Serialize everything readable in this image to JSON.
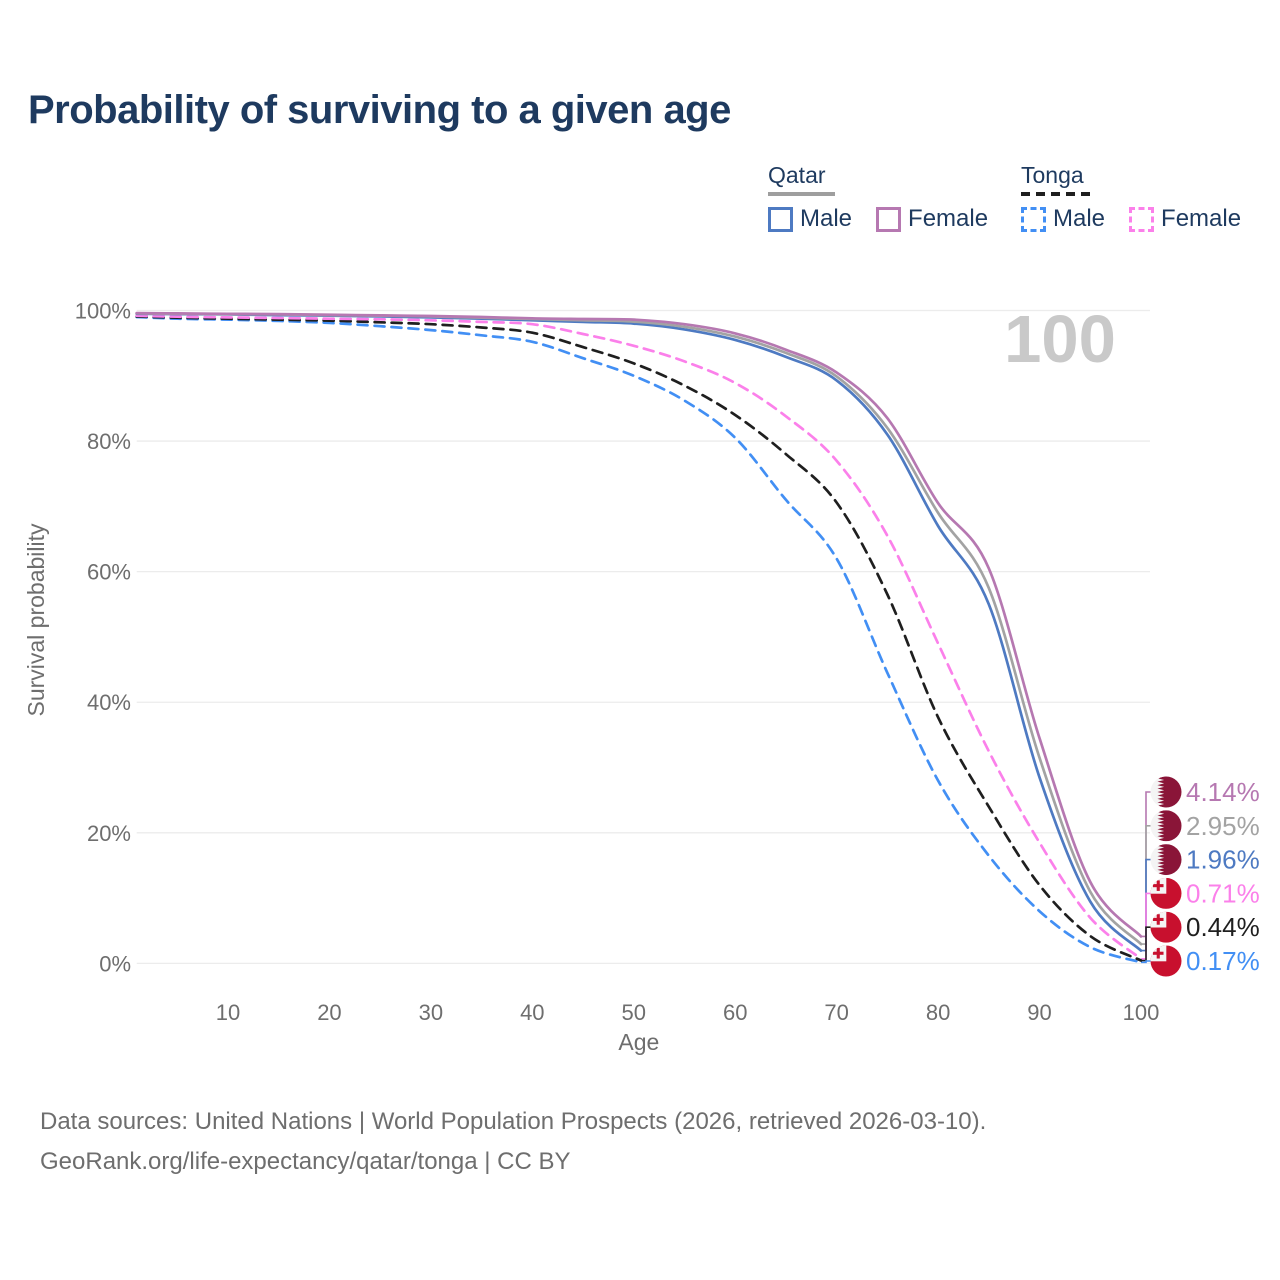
{
  "title": "Probability of surviving to a given age",
  "legend": {
    "groups": [
      {
        "label": "Qatar",
        "underline": {
          "style": "solid",
          "color": "#9e9e9e"
        },
        "items": [
          {
            "label": "Male",
            "color": "#4e7ac2",
            "dashed": false
          },
          {
            "label": "Female",
            "color": "#b678b1",
            "dashed": false
          }
        ]
      },
      {
        "label": "Tonga",
        "underline": {
          "style": "dashed",
          "color": "#1f1f1f"
        },
        "items": [
          {
            "label": "Male",
            "color": "#428ff4",
            "dashed": true
          },
          {
            "label": "Female",
            "color": "#fb80ea",
            "dashed": true
          }
        ]
      }
    ]
  },
  "chart_data": {
    "type": "line",
    "title": "Probability of surviving to a given age",
    "xlabel": "Age",
    "ylabel": "Survival probability",
    "xlim": [
      1,
      100
    ],
    "ylim": [
      0,
      100
    ],
    "grid": "horizontal",
    "watermark": "100",
    "x_ticks": [
      10,
      20,
      30,
      40,
      50,
      60,
      70,
      80,
      90,
      100
    ],
    "y_ticks": [
      0,
      20,
      40,
      60,
      80,
      100
    ],
    "y_tick_suffix": "%",
    "x": [
      1,
      5,
      10,
      15,
      20,
      25,
      30,
      35,
      40,
      45,
      50,
      55,
      60,
      65,
      70,
      75,
      80,
      85,
      90,
      95,
      100
    ],
    "series": [
      {
        "name": "Tonga Male",
        "country": "Tonga",
        "sex": "Male",
        "color": "#428ff4",
        "dashed": true,
        "end_label": "0.17%",
        "values": [
          99.0,
          98.75,
          98.6,
          98.4,
          98.1,
          97.6,
          97.0,
          96.2,
          95.2,
          92.7,
          90.0,
          86.2,
          80.5,
          71.0,
          62.0,
          44.5,
          28.0,
          16.5,
          8.0,
          2.5,
          0.17
        ]
      },
      {
        "name": "Tonga",
        "country": "Tonga",
        "sex": "Both",
        "color": "#1f1f1f",
        "dashed": true,
        "end_label": "0.44%",
        "values": [
          99.1,
          98.9,
          98.75,
          98.6,
          98.45,
          98.2,
          97.9,
          97.4,
          96.6,
          94.4,
          91.9,
          88.5,
          84.0,
          78.0,
          70.6,
          56.5,
          37.7,
          24.0,
          12.0,
          4.2,
          0.44
        ]
      },
      {
        "name": "Tonga Female",
        "country": "Tonga",
        "sex": "Female",
        "color": "#fb80ea",
        "dashed": true,
        "end_label": "0.71%",
        "values": [
          99.2,
          99.05,
          98.95,
          98.85,
          98.75,
          98.65,
          98.5,
          98.25,
          97.9,
          96.4,
          94.6,
          92.2,
          88.9,
          83.8,
          77.0,
          65.5,
          49.0,
          32.5,
          18.5,
          7.0,
          0.71
        ]
      },
      {
        "name": "Qatar Male",
        "country": "Qatar",
        "sex": "Male",
        "color": "#4e7ac2",
        "dashed": false,
        "end_label": "1.96%",
        "values": [
          99.5,
          99.45,
          99.4,
          99.3,
          99.2,
          99.1,
          98.95,
          98.75,
          98.5,
          98.25,
          98.0,
          97.1,
          95.5,
          92.9,
          89.3,
          81.0,
          67.0,
          55.0,
          28.5,
          9.5,
          1.96
        ]
      },
      {
        "name": "Qatar",
        "country": "Qatar",
        "sex": "Both",
        "color": "#a3a3a3",
        "dashed": false,
        "end_label": "2.95%",
        "values": [
          99.55,
          99.5,
          99.45,
          99.4,
          99.3,
          99.2,
          99.1,
          98.9,
          98.7,
          98.5,
          98.3,
          97.5,
          96.0,
          93.5,
          89.9,
          82.0,
          69.0,
          57.5,
          31.5,
          11.0,
          2.95
        ]
      },
      {
        "name": "Qatar Female",
        "country": "Qatar",
        "sex": "Female",
        "color": "#b678b1",
        "dashed": false,
        "end_label": "4.14%",
        "values": [
          99.6,
          99.55,
          99.5,
          99.45,
          99.35,
          99.25,
          99.15,
          99.0,
          98.8,
          98.7,
          98.6,
          97.9,
          96.5,
          94.0,
          90.5,
          83.5,
          70.5,
          60.5,
          34.5,
          12.5,
          4.14
        ]
      }
    ]
  },
  "flag_colors": {
    "qatar_maroon": "#8a1538",
    "tonga_red": "#c8102e",
    "flag_white": "#f4f4f4"
  },
  "footer": {
    "line1": "Data sources: United Nations | World Population Prospects (2026, retrieved 2026-03-10).",
    "line2": "GeoRank.org/life-expectancy/qatar/tonga | CC BY"
  }
}
